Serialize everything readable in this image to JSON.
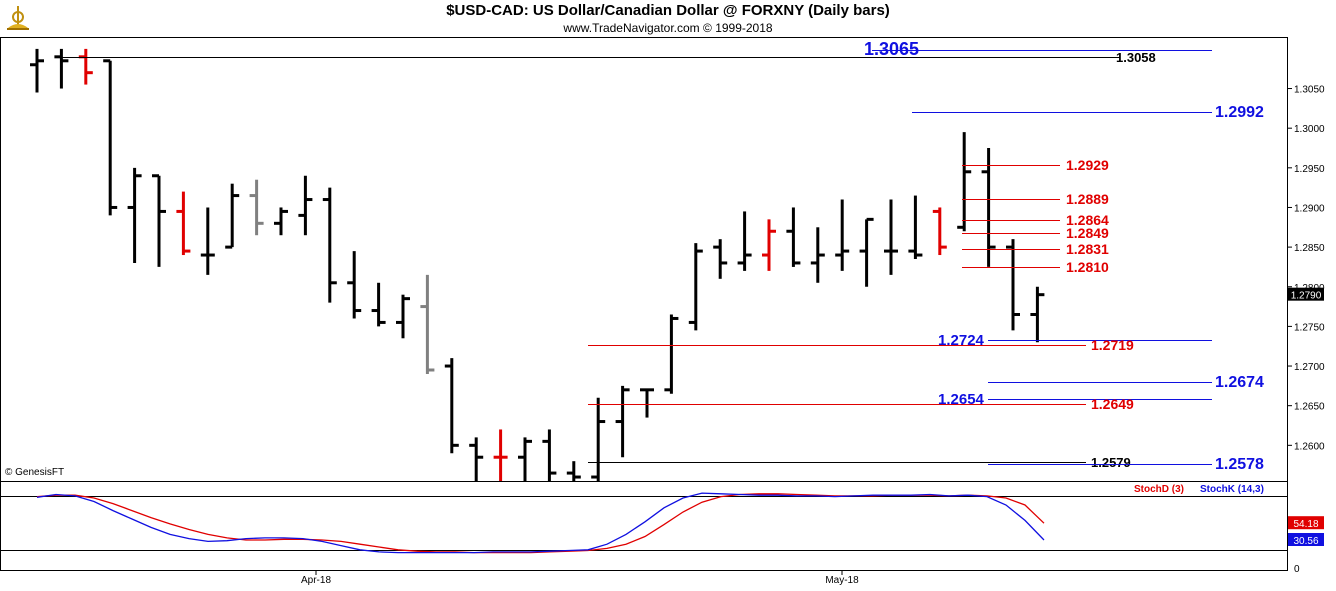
{
  "header": {
    "title": "$USD-CAD:  US Dollar/Canadian Dollar @ FORXNY  (Daily bars)",
    "subtitle": "www.TradeNavigator.com © 1999-2018",
    "watermark": "© GenesisFT"
  },
  "colors": {
    "bar_default": "#000000",
    "bar_red": "#e00000",
    "bar_gray": "#808080",
    "blue_level": "#1010e0",
    "red_level": "#e00000",
    "stoch_d": "#e00000",
    "stoch_k": "#1010e0",
    "last_price_bg": "#000000"
  },
  "chart_data": [
    {
      "type": "ohlc",
      "title": "$USD-CAD:  US Dollar/Canadian Dollar @ FORXNY  (Daily bars)",
      "x_tick_labels": [
        "Apr-18",
        "May-18"
      ],
      "y_tick_labels": [
        "1.2600",
        "1.2650",
        "1.2700",
        "1.2750",
        "1.2800",
        "1.2850",
        "1.2900",
        "1.2950",
        "1.3000",
        "1.3050"
      ],
      "ylim": [
        1.2555,
        1.3115
      ],
      "last_price": "1.2790",
      "bars": [
        {
          "o": 1.308,
          "h": 1.31,
          "l": 1.3045,
          "c": 1.3085,
          "color": "black"
        },
        {
          "o": 1.309,
          "h": 1.31,
          "l": 1.305,
          "c": 1.3085,
          "color": "black"
        },
        {
          "o": 1.309,
          "h": 1.31,
          "l": 1.3055,
          "c": 1.307,
          "color": "red"
        },
        {
          "o": 1.3085,
          "h": 1.3085,
          "l": 1.289,
          "c": 1.29,
          "color": "black"
        },
        {
          "o": 1.29,
          "h": 1.295,
          "l": 1.283,
          "c": 1.294,
          "color": "black"
        },
        {
          "o": 1.294,
          "h": 1.294,
          "l": 1.2825,
          "c": 1.2895,
          "color": "black"
        },
        {
          "o": 1.2895,
          "h": 1.292,
          "l": 1.284,
          "c": 1.2845,
          "color": "red"
        },
        {
          "o": 1.284,
          "h": 1.29,
          "l": 1.2815,
          "c": 1.284,
          "color": "black"
        },
        {
          "o": 1.285,
          "h": 1.293,
          "l": 1.285,
          "c": 1.2915,
          "color": "black"
        },
        {
          "o": 1.2915,
          "h": 1.2935,
          "l": 1.2865,
          "c": 1.288,
          "color": "gray"
        },
        {
          "o": 1.288,
          "h": 1.29,
          "l": 1.2865,
          "c": 1.2895,
          "color": "black"
        },
        {
          "o": 1.289,
          "h": 1.294,
          "l": 1.2865,
          "c": 1.291,
          "color": "black"
        },
        {
          "o": 1.291,
          "h": 1.2925,
          "l": 1.278,
          "c": 1.2805,
          "color": "black"
        },
        {
          "o": 1.2805,
          "h": 1.2845,
          "l": 1.276,
          "c": 1.277,
          "color": "black"
        },
        {
          "o": 1.277,
          "h": 1.2805,
          "l": 1.275,
          "c": 1.2755,
          "color": "black"
        },
        {
          "o": 1.2755,
          "h": 1.279,
          "l": 1.2735,
          "c": 1.2785,
          "color": "black"
        },
        {
          "o": 1.2775,
          "h": 1.2815,
          "l": 1.269,
          "c": 1.2695,
          "color": "gray"
        },
        {
          "o": 1.27,
          "h": 1.271,
          "l": 1.259,
          "c": 1.26,
          "color": "black"
        },
        {
          "o": 1.26,
          "h": 1.261,
          "l": 1.2555,
          "c": 1.2585,
          "color": "black"
        },
        {
          "o": 1.2585,
          "h": 1.262,
          "l": 1.2555,
          "c": 1.2585,
          "color": "red"
        },
        {
          "o": 1.2585,
          "h": 1.261,
          "l": 1.2555,
          "c": 1.2605,
          "color": "black"
        },
        {
          "o": 1.2605,
          "h": 1.262,
          "l": 1.2555,
          "c": 1.2565,
          "color": "black"
        },
        {
          "o": 1.2565,
          "h": 1.258,
          "l": 1.2555,
          "c": 1.256,
          "color": "black"
        },
        {
          "o": 1.256,
          "h": 1.266,
          "l": 1.2555,
          "c": 1.263,
          "color": "black"
        },
        {
          "o": 1.263,
          "h": 1.2675,
          "l": 1.2585,
          "c": 1.267,
          "color": "black"
        },
        {
          "o": 1.267,
          "h": 1.267,
          "l": 1.2635,
          "c": 1.267,
          "color": "black"
        },
        {
          "o": 1.267,
          "h": 1.2765,
          "l": 1.2665,
          "c": 1.276,
          "color": "black"
        },
        {
          "o": 1.2755,
          "h": 1.2855,
          "l": 1.2745,
          "c": 1.2845,
          "color": "black"
        },
        {
          "o": 1.285,
          "h": 1.286,
          "l": 1.281,
          "c": 1.283,
          "color": "black"
        },
        {
          "o": 1.283,
          "h": 1.2895,
          "l": 1.282,
          "c": 1.284,
          "color": "black"
        },
        {
          "o": 1.284,
          "h": 1.2885,
          "l": 1.282,
          "c": 1.287,
          "color": "red"
        },
        {
          "o": 1.287,
          "h": 1.29,
          "l": 1.2825,
          "c": 1.283,
          "color": "black"
        },
        {
          "o": 1.283,
          "h": 1.2875,
          "l": 1.2805,
          "c": 1.284,
          "color": "black"
        },
        {
          "o": 1.284,
          "h": 1.291,
          "l": 1.282,
          "c": 1.2845,
          "color": "black"
        },
        {
          "o": 1.2845,
          "h": 1.2885,
          "l": 1.28,
          "c": 1.2885,
          "color": "black"
        },
        {
          "o": 1.2845,
          "h": 1.291,
          "l": 1.2815,
          "c": 1.2845,
          "color": "black"
        },
        {
          "o": 1.2845,
          "h": 1.2915,
          "l": 1.2835,
          "c": 1.284,
          "color": "black"
        },
        {
          "o": 1.2895,
          "h": 1.29,
          "l": 1.284,
          "c": 1.285,
          "color": "red"
        },
        {
          "o": 1.2875,
          "h": 1.2995,
          "l": 1.287,
          "c": 1.2945,
          "color": "black"
        },
        {
          "o": 1.2945,
          "h": 1.2975,
          "l": 1.2825,
          "c": 1.285,
          "color": "black"
        },
        {
          "o": 1.285,
          "h": 1.286,
          "l": 1.2745,
          "c": 1.2765,
          "color": "black"
        },
        {
          "o": 1.2765,
          "h": 1.28,
          "l": 1.273,
          "c": 1.279,
          "color": "black"
        }
      ],
      "levels": [
        {
          "value": "1.3065",
          "color": "blue"
        },
        {
          "value": "1.3058",
          "color": "black"
        },
        {
          "value": "1.2992",
          "color": "blue"
        },
        {
          "value": "1.2929",
          "color": "red"
        },
        {
          "value": "1.2889",
          "color": "red"
        },
        {
          "value": "1.2864",
          "color": "red"
        },
        {
          "value": "1.2849",
          "color": "red"
        },
        {
          "value": "1.2831",
          "color": "red"
        },
        {
          "value": "1.2810",
          "color": "red"
        },
        {
          "value": "1.2724",
          "color": "blue"
        },
        {
          "value": "1.2719",
          "color": "red"
        },
        {
          "value": "1.2674",
          "color": "blue"
        },
        {
          "value": "1.2654",
          "color": "blue"
        },
        {
          "value": "1.2649",
          "color": "red"
        },
        {
          "value": "1.2579",
          "color": "black"
        },
        {
          "value": "1.2578",
          "color": "blue"
        }
      ]
    },
    {
      "type": "line",
      "series": [
        {
          "name": "StochD (3)",
          "color": "red",
          "last": "54.18",
          "values": [
            92,
            94,
            94,
            90,
            82,
            72,
            62,
            53,
            45,
            38,
            33,
            30,
            30,
            31,
            31,
            30,
            28,
            24,
            20,
            16,
            14,
            13,
            13,
            12,
            12,
            12,
            12,
            13,
            14,
            15,
            18,
            24,
            35,
            52,
            70,
            84,
            92,
            95,
            96,
            96,
            95,
            94,
            93,
            93,
            93,
            94,
            94,
            94,
            93,
            94,
            93,
            90,
            80,
            54
          ]
        },
        {
          "name": "StochK (14,3)",
          "color": "blue",
          "last": "30.56",
          "values": [
            91,
            95,
            93,
            85,
            72,
            60,
            48,
            38,
            32,
            28,
            29,
            32,
            33,
            33,
            32,
            28,
            22,
            16,
            13,
            12,
            12,
            12,
            12,
            12,
            13,
            13,
            13,
            14,
            15,
            16,
            24,
            38,
            56,
            76,
            90,
            97,
            96,
            95,
            94,
            94,
            93,
            93,
            92,
            93,
            94,
            94,
            94,
            95,
            93,
            94,
            92,
            80,
            58,
            30
          ]
        }
      ],
      "y_tick_labels": [
        "0"
      ],
      "ylim": [
        0,
        100
      ]
    }
  ]
}
